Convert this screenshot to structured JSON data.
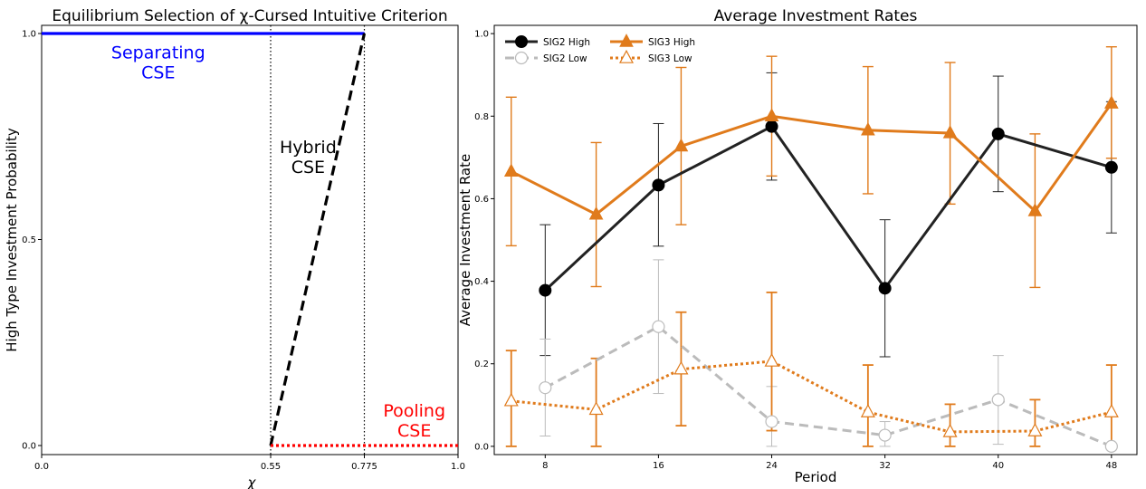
{
  "chart_data": [
    {
      "type": "line",
      "title": "Equilibrium Selection of χ-Cursed Intuitive Criterion",
      "xlabel": "χ",
      "ylabel": "High Type Investment Probability",
      "xlim": [
        0,
        1
      ],
      "ylim": [
        0,
        1
      ],
      "xticks": [
        "0.0",
        "0.55",
        "0.775",
        "1.0"
      ],
      "xtick_values": [
        0,
        0.55,
        0.775,
        1.0
      ],
      "yticks": [
        "0.0",
        "0.5",
        "1.0"
      ],
      "ytick_values": [
        0,
        0.5,
        1.0
      ],
      "vlines": [
        0.55,
        0.775
      ],
      "series": [
        {
          "name": "Separating CSE",
          "color": "#0000ff",
          "style": "solid",
          "x": [
            0,
            0.775
          ],
          "y": [
            1,
            1
          ]
        },
        {
          "name": "Hybrid CSE",
          "color": "#000000",
          "style": "dashed",
          "x": [
            0.55,
            0.775
          ],
          "y": [
            0,
            1
          ]
        },
        {
          "name": "Pooling CSE",
          "color": "#ff0000",
          "style": "dotted",
          "x": [
            0.55,
            1.0
          ],
          "y": [
            0,
            0
          ]
        }
      ],
      "annotations": [
        {
          "lines": [
            "Separating",
            "CSE"
          ],
          "color": "#0000ff",
          "x": 0.28,
          "y": 0.94
        },
        {
          "lines": [
            "Hybrid",
            "CSE"
          ],
          "color": "#000000",
          "x": 0.64,
          "y": 0.71
        },
        {
          "lines": [
            "Pooling",
            "CSE"
          ],
          "color": "#ff0000",
          "x": 0.895,
          "y": 0.07
        }
      ]
    },
    {
      "type": "line",
      "title": "Average Investment Rates",
      "xlabel": "Period",
      "ylabel": "Average Investment Rate",
      "xlim": [
        4.4,
        49.8
      ],
      "ylim": [
        -0.02,
        1.02
      ],
      "xticks": [
        "8",
        "16",
        "24",
        "32",
        "40",
        "48"
      ],
      "xtick_values": [
        8,
        16,
        24,
        32,
        40,
        48
      ],
      "yticks": [
        "0.0",
        "0.2",
        "0.4",
        "0.6",
        "0.8",
        "1.0"
      ],
      "ytick_values": [
        0,
        0.2,
        0.4,
        0.6,
        0.8,
        1.0
      ],
      "legend_position": "top-left",
      "series": [
        {
          "name": "SIG2 High",
          "color": "#222222",
          "line": "solid",
          "marker": "circle-filled",
          "x": [
            8,
            16,
            24,
            32,
            40,
            48
          ],
          "y": [
            0.378,
            0.633,
            0.775,
            0.383,
            0.757,
            0.676
          ],
          "err_low": [
            0.22,
            0.485,
            0.645,
            0.217,
            0.617,
            0.517
          ],
          "err_high": [
            0.537,
            0.782,
            0.905,
            0.549,
            0.897,
            0.835
          ]
        },
        {
          "name": "SIG2 Low",
          "color": "#bbbbbb",
          "line": "dashed",
          "marker": "circle-open",
          "x": [
            8,
            16,
            24,
            32,
            40,
            48
          ],
          "y": [
            0.142,
            0.29,
            0.06,
            0.027,
            0.113,
            0.0
          ],
          "err_low": [
            0.025,
            0.128,
            0.0,
            0.0,
            0.005,
            0.0
          ],
          "err_high": [
            0.26,
            0.452,
            0.145,
            0.06,
            0.22,
            0.0
          ]
        },
        {
          "name": "SIG3 High",
          "color": "#e07b1c",
          "line": "solid",
          "marker": "triangle-filled",
          "x": [
            5.6,
            11.6,
            17.6,
            24,
            30.8,
            36.6,
            42.6,
            48
          ],
          "y": [
            0.666,
            0.562,
            0.727,
            0.8,
            0.766,
            0.759,
            0.57,
            0.831
          ],
          "err_low": [
            0.486,
            0.387,
            0.537,
            0.655,
            0.612,
            0.587,
            0.385,
            0.698
          ],
          "err_high": [
            0.846,
            0.736,
            0.918,
            0.945,
            0.92,
            0.93,
            0.757,
            0.968
          ]
        },
        {
          "name": "SIG3 Low",
          "color": "#e07b1c",
          "line": "dotted",
          "marker": "triangle-open",
          "x": [
            5.6,
            11.6,
            17.6,
            24,
            30.8,
            36.6,
            42.6,
            48
          ],
          "y": [
            0.11,
            0.089,
            0.187,
            0.206,
            0.083,
            0.035,
            0.037,
            0.083
          ],
          "err_low": [
            0.0,
            0.0,
            0.05,
            0.038,
            0.0,
            0.0,
            0.0,
            0.0
          ],
          "err_high": [
            0.232,
            0.213,
            0.325,
            0.373,
            0.197,
            0.102,
            0.113,
            0.197
          ]
        }
      ]
    }
  ]
}
